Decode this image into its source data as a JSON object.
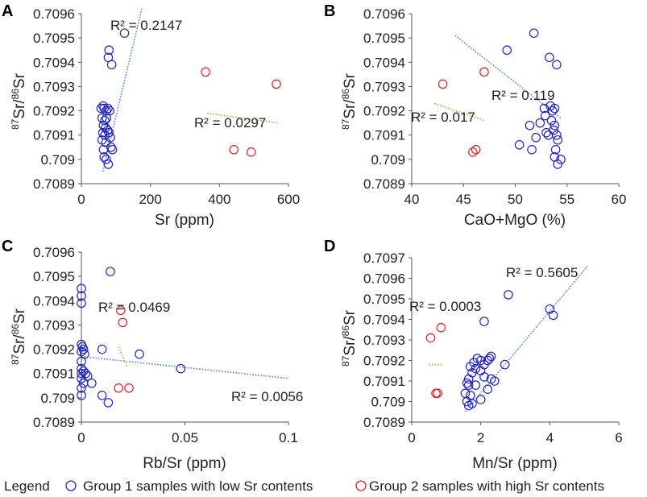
{
  "legend": {
    "label": "Legend",
    "group1": "Group 1 samples with low Sr contents",
    "group2": "Group 2 samples with high Sr contents"
  },
  "colors": {
    "group1": "#2323c8",
    "group2": "#e02020",
    "trend1": "#4a7dc4",
    "trend2": "#e0902a"
  },
  "chart_data": [
    {
      "panel": "A",
      "type": "scatter",
      "xlabel": "Sr (ppm)",
      "ylabel_mass1": "87",
      "ylabel_el1": "Sr/",
      "ylabel_mass2": "86",
      "ylabel_el2": "Sr",
      "xlim": [
        0,
        600
      ],
      "ylim": [
        0.7089,
        0.7096
      ],
      "xticks": [
        0,
        200,
        400,
        600
      ],
      "xtick_labels": [
        "0",
        "200",
        "400",
        "600"
      ],
      "yticks": [
        0.7089,
        0.709,
        0.7091,
        0.7092,
        0.7093,
        0.7094,
        0.7095,
        0.7096
      ],
      "ytick_labels": [
        "0.7089",
        "0.709",
        "0.7091",
        "0.7092",
        "0.7093",
        "0.7094",
        "0.7095",
        "0.7096"
      ],
      "series": [
        {
          "name": "Group 1",
          "points": [
            [
              125,
              0.70952
            ],
            [
              80,
              0.70945
            ],
            [
              78,
              0.70942
            ],
            [
              88,
              0.70939
            ],
            [
              57,
              0.70921
            ],
            [
              63,
              0.70922
            ],
            [
              66,
              0.70921
            ],
            [
              72,
              0.7092
            ],
            [
              77,
              0.70921
            ],
            [
              82,
              0.7092
            ],
            [
              60,
              0.70917
            ],
            [
              68,
              0.70916
            ],
            [
              73,
              0.70917
            ],
            [
              64,
              0.70914
            ],
            [
              70,
              0.70913
            ],
            [
              76,
              0.70912
            ],
            [
              62,
              0.70911
            ],
            [
              68,
              0.7091
            ],
            [
              80,
              0.70911
            ],
            [
              84,
              0.70909
            ],
            [
              60,
              0.70908
            ],
            [
              71,
              0.70907
            ],
            [
              86,
              0.70905
            ],
            [
              90,
              0.70904
            ],
            [
              64,
              0.70904
            ],
            [
              72,
              0.709
            ],
            [
              66,
              0.70901
            ],
            [
              78,
              0.70898
            ]
          ]
        },
        {
          "name": "Group 2",
          "points": [
            [
              360,
              0.70936
            ],
            [
              565,
              0.70931
            ],
            [
              442,
              0.70904
            ],
            [
              492,
              0.70903
            ]
          ]
        }
      ],
      "trendlines": [
        {
          "series": "Group 1",
          "label": "R² = 0.2147",
          "from": [
            62,
            0.70895
          ],
          "to": [
            175,
            0.70962
          ]
        },
        {
          "series": "Group 2",
          "label": "R² = 0.0297",
          "from": [
            365,
            0.70919
          ],
          "to": [
            570,
            0.70915
          ]
        }
      ]
    },
    {
      "panel": "B",
      "type": "scatter",
      "xlabel": "CaO+MgO (%)",
      "ylabel_mass1": "87",
      "ylabel_el1": "Sr/",
      "ylabel_mass2": "86",
      "ylabel_el2": "Sr",
      "xlim": [
        40,
        60
      ],
      "ylim": [
        0.7089,
        0.7096
      ],
      "xticks": [
        40,
        45,
        50,
        55,
        60
      ],
      "xtick_labels": [
        "40",
        "45",
        "50",
        "55",
        "60"
      ],
      "yticks": [
        0.7089,
        0.709,
        0.7091,
        0.7092,
        0.7093,
        0.7094,
        0.7095,
        0.7096
      ],
      "ytick_labels": [
        "0.7089",
        "0.709",
        "0.7091",
        "0.7092",
        "0.7093",
        "0.7094",
        "0.7095",
        "0.7096"
      ],
      "series": [
        {
          "name": "Group 1",
          "points": [
            [
              51.8,
              0.70952
            ],
            [
              49.2,
              0.70945
            ],
            [
              53.3,
              0.70942
            ],
            [
              54.0,
              0.70939
            ],
            [
              52.8,
              0.70921
            ],
            [
              53.4,
              0.70922
            ],
            [
              53.8,
              0.70921
            ],
            [
              53.6,
              0.7092
            ],
            [
              52.9,
              0.70918
            ],
            [
              53.5,
              0.70916
            ],
            [
              52.4,
              0.70915
            ],
            [
              53.8,
              0.70914
            ],
            [
              51.4,
              0.70914
            ],
            [
              53.7,
              0.70912
            ],
            [
              53.0,
              0.70911
            ],
            [
              53.2,
              0.7091
            ],
            [
              54.0,
              0.7091
            ],
            [
              52.0,
              0.70909
            ],
            [
              54.1,
              0.70908
            ],
            [
              50.4,
              0.70906
            ],
            [
              51.6,
              0.70904
            ],
            [
              53.9,
              0.70904
            ],
            [
              53.8,
              0.70901
            ],
            [
              54.4,
              0.709
            ],
            [
              54.1,
              0.70898
            ]
          ]
        },
        {
          "name": "Group 2",
          "points": [
            [
              43.0,
              0.70931
            ],
            [
              47.0,
              0.70936
            ],
            [
              45.9,
              0.70903
            ],
            [
              46.2,
              0.70904
            ]
          ]
        }
      ],
      "trendlines": [
        {
          "series": "Group 1",
          "label": "R² = 0.119",
          "from": [
            44.2,
            0.70951
          ],
          "to": [
            54.4,
            0.70917
          ]
        },
        {
          "series": "Group 2",
          "label": "R² = 0.017",
          "from": [
            42.2,
            0.70923
          ],
          "to": [
            47.0,
            0.70916
          ]
        }
      ]
    },
    {
      "panel": "C",
      "type": "scatter",
      "xlabel": "Rb/Sr (ppm)",
      "ylabel_mass1": "87",
      "ylabel_el1": "Sr/",
      "ylabel_mass2": "86",
      "ylabel_el2": "Sr",
      "xlim": [
        0,
        0.1
      ],
      "ylim": [
        0.7089,
        0.7096
      ],
      "xticks": [
        0,
        0.05,
        0.1
      ],
      "xtick_labels": [
        "0",
        "0.05",
        "0.1"
      ],
      "yticks": [
        0.7089,
        0.709,
        0.7091,
        0.7092,
        0.7093,
        0.7094,
        0.7095,
        0.7096
      ],
      "ytick_labels": [
        "0.7089",
        "0.709",
        "0.7091",
        "0.7092",
        "0.7093",
        "0.7094",
        "0.7095",
        "0.7096"
      ],
      "series": [
        {
          "name": "Group 1",
          "points": [
            [
              0.014,
              0.70952
            ],
            [
              0.0,
              0.70945
            ],
            [
              0.0,
              0.70942
            ],
            [
              0.0,
              0.70939
            ],
            [
              0.0,
              0.70922
            ],
            [
              0.0005,
              0.70921
            ],
            [
              0.001,
              0.7092
            ],
            [
              0.0,
              0.70919
            ],
            [
              0.0015,
              0.70918
            ],
            [
              0.0,
              0.70915
            ],
            [
              0.0,
              0.70912
            ],
            [
              0.001,
              0.70911
            ],
            [
              0.002,
              0.7091
            ],
            [
              0.003,
              0.70909
            ],
            [
              0.0,
              0.7091
            ],
            [
              0.0,
              0.70908
            ],
            [
              0.001,
              0.70906
            ],
            [
              0.0,
              0.70904
            ],
            [
              0.005,
              0.70906
            ],
            [
              0.01,
              0.7092
            ],
            [
              0.028,
              0.70918
            ],
            [
              0.048,
              0.70912
            ],
            [
              0.01,
              0.70901
            ],
            [
              0.013,
              0.70898
            ],
            [
              0.0,
              0.70901
            ]
          ]
        },
        {
          "name": "Group 2",
          "points": [
            [
              0.019,
              0.70936
            ],
            [
              0.02,
              0.70931
            ],
            [
              0.018,
              0.70904
            ],
            [
              0.023,
              0.70904
            ]
          ]
        }
      ],
      "trendlines": [
        {
          "series": "Group 1",
          "label": "R² = 0.0056",
          "from": [
            0.0,
            0.70917
          ],
          "to": [
            0.1,
            0.70908
          ]
        },
        {
          "series": "Group 2",
          "label": "R² = 0.0469",
          "from": [
            0.018,
            0.70921
          ],
          "to": [
            0.022,
            0.70913
          ]
        }
      ]
    },
    {
      "panel": "D",
      "type": "scatter",
      "xlabel": "Mn/Sr (ppm)",
      "ylabel_mass1": "87",
      "ylabel_el1": "Sr/",
      "ylabel_mass2": "86",
      "ylabel_el2": "Sr",
      "xlim": [
        0,
        6
      ],
      "ylim": [
        0.7089,
        0.7097
      ],
      "xticks": [
        0,
        2,
        4,
        6
      ],
      "xtick_labels": [
        "0",
        "2",
        "4",
        "6"
      ],
      "yticks": [
        0.7089,
        0.709,
        0.7091,
        0.7092,
        0.7093,
        0.7094,
        0.7095,
        0.7096,
        0.7097
      ],
      "ytick_labels": [
        "0.7089",
        "0.709",
        "0.7091",
        "0.7092",
        "0.7093",
        "0.7094",
        "0.7095",
        "0.7096",
        "0.7097"
      ],
      "series": [
        {
          "name": "Group 1",
          "points": [
            [
              2.8,
              0.70952
            ],
            [
              4.0,
              0.70945
            ],
            [
              4.1,
              0.70942
            ],
            [
              2.1,
              0.70939
            ],
            [
              2.3,
              0.70922
            ],
            [
              2.25,
              0.70921
            ],
            [
              1.9,
              0.70921
            ],
            [
              2.0,
              0.7092
            ],
            [
              2.2,
              0.7092
            ],
            [
              1.8,
              0.70919
            ],
            [
              2.1,
              0.70918
            ],
            [
              1.7,
              0.70917
            ],
            [
              2.7,
              0.70918
            ],
            [
              1.85,
              0.70916
            ],
            [
              2.0,
              0.70915
            ],
            [
              1.75,
              0.70914
            ],
            [
              1.65,
              0.70911
            ],
            [
              2.1,
              0.70912
            ],
            [
              2.3,
              0.70911
            ],
            [
              2.4,
              0.7091
            ],
            [
              1.6,
              0.70909
            ],
            [
              1.85,
              0.70908
            ],
            [
              1.65,
              0.70908
            ],
            [
              2.2,
              0.70906
            ],
            [
              1.55,
              0.70904
            ],
            [
              1.7,
              0.70903
            ],
            [
              1.6,
              0.709
            ],
            [
              1.75,
              0.70899
            ],
            [
              1.65,
              0.70898
            ],
            [
              2.0,
              0.70901
            ]
          ]
        },
        {
          "name": "Group 2",
          "points": [
            [
              0.55,
              0.70931
            ],
            [
              0.85,
              0.70936
            ],
            [
              0.7,
              0.70904
            ],
            [
              0.75,
              0.70904
            ]
          ]
        }
      ],
      "trendlines": [
        {
          "series": "Group 1",
          "label": "R² = 0.5605",
          "from": [
            1.55,
            0.70895
          ],
          "to": [
            5.1,
            0.70966
          ]
        },
        {
          "series": "Group 2",
          "label": "R² = 0.0003",
          "from": [
            0.5,
            0.70918
          ],
          "to": [
            0.9,
            0.70918
          ]
        }
      ]
    }
  ]
}
